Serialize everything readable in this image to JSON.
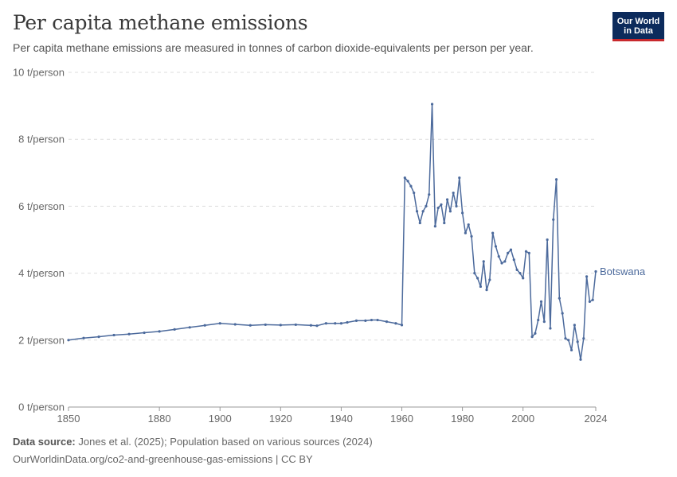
{
  "header": {
    "title": "Per capita methane emissions",
    "subtitle": "Per capita methane emissions are measured in tonnes of carbon dioxide-equivalents per person per year."
  },
  "logo": {
    "line1": "Our World",
    "line2": "in Data"
  },
  "footer": {
    "source_label": "Data source:",
    "source_text": "Jones et al. (2025); Population based on various sources (2024)",
    "url_text": "OurWorldinData.org/co2-and-greenhouse-gas-emissions | CC BY"
  },
  "colors": {
    "series": "#4c6a9c",
    "grid": "#dddddd",
    "axis": "#666666"
  },
  "chart_data": {
    "type": "line",
    "title": "Per capita methane emissions",
    "xlabel": "",
    "ylabel": "",
    "xlim": [
      1850,
      2024
    ],
    "ylim": [
      0,
      10
    ],
    "x_ticks": [
      1850,
      1880,
      1900,
      1920,
      1940,
      1960,
      1980,
      2000,
      2024
    ],
    "y_ticks": [
      0,
      2,
      4,
      6,
      8,
      10
    ],
    "y_tick_labels": [
      "0 t/person",
      "2 t/person",
      "4 t/person",
      "6 t/person",
      "8 t/person",
      "10 t/person"
    ],
    "grid": true,
    "series": [
      {
        "name": "Botswana",
        "x": [
          1850,
          1855,
          1860,
          1865,
          1870,
          1875,
          1880,
          1885,
          1890,
          1895,
          1900,
          1905,
          1910,
          1915,
          1920,
          1925,
          1930,
          1932,
          1935,
          1938,
          1940,
          1942,
          1945,
          1948,
          1950,
          1952,
          1955,
          1958,
          1960,
          1961,
          1962,
          1963,
          1964,
          1965,
          1966,
          1967,
          1968,
          1969,
          1970,
          1971,
          1972,
          1973,
          1974,
          1975,
          1976,
          1977,
          1978,
          1979,
          1980,
          1981,
          1982,
          1983,
          1984,
          1985,
          1986,
          1987,
          1988,
          1989,
          1990,
          1991,
          1992,
          1993,
          1994,
          1995,
          1996,
          1997,
          1998,
          1999,
          2000,
          2001,
          2002,
          2003,
          2004,
          2005,
          2006,
          2007,
          2008,
          2009,
          2010,
          2011,
          2012,
          2013,
          2014,
          2015,
          2016,
          2017,
          2018,
          2019,
          2020,
          2021,
          2022,
          2023,
          2024
        ],
        "values": [
          2.0,
          2.06,
          2.1,
          2.15,
          2.18,
          2.22,
          2.26,
          2.32,
          2.38,
          2.44,
          2.5,
          2.47,
          2.44,
          2.46,
          2.45,
          2.46,
          2.44,
          2.43,
          2.5,
          2.5,
          2.5,
          2.53,
          2.58,
          2.58,
          2.6,
          2.6,
          2.55,
          2.5,
          2.45,
          6.85,
          6.75,
          6.6,
          6.4,
          5.85,
          5.5,
          5.85,
          6.0,
          6.35,
          9.05,
          5.4,
          5.95,
          6.05,
          5.5,
          6.2,
          5.85,
          6.4,
          6.0,
          6.85,
          5.8,
          5.2,
          5.45,
          5.1,
          4.0,
          3.85,
          3.6,
          4.35,
          3.5,
          3.8,
          5.2,
          4.8,
          4.5,
          4.3,
          4.35,
          4.6,
          4.7,
          4.4,
          4.1,
          4.0,
          3.85,
          4.65,
          4.6,
          2.1,
          2.2,
          2.6,
          3.15,
          2.55,
          5.0,
          2.35,
          5.6,
          6.8,
          3.25,
          2.8,
          2.05,
          2.0,
          1.7,
          2.45,
          1.95,
          1.42,
          2.05,
          3.9,
          3.15,
          3.2,
          4.05
        ]
      }
    ]
  }
}
